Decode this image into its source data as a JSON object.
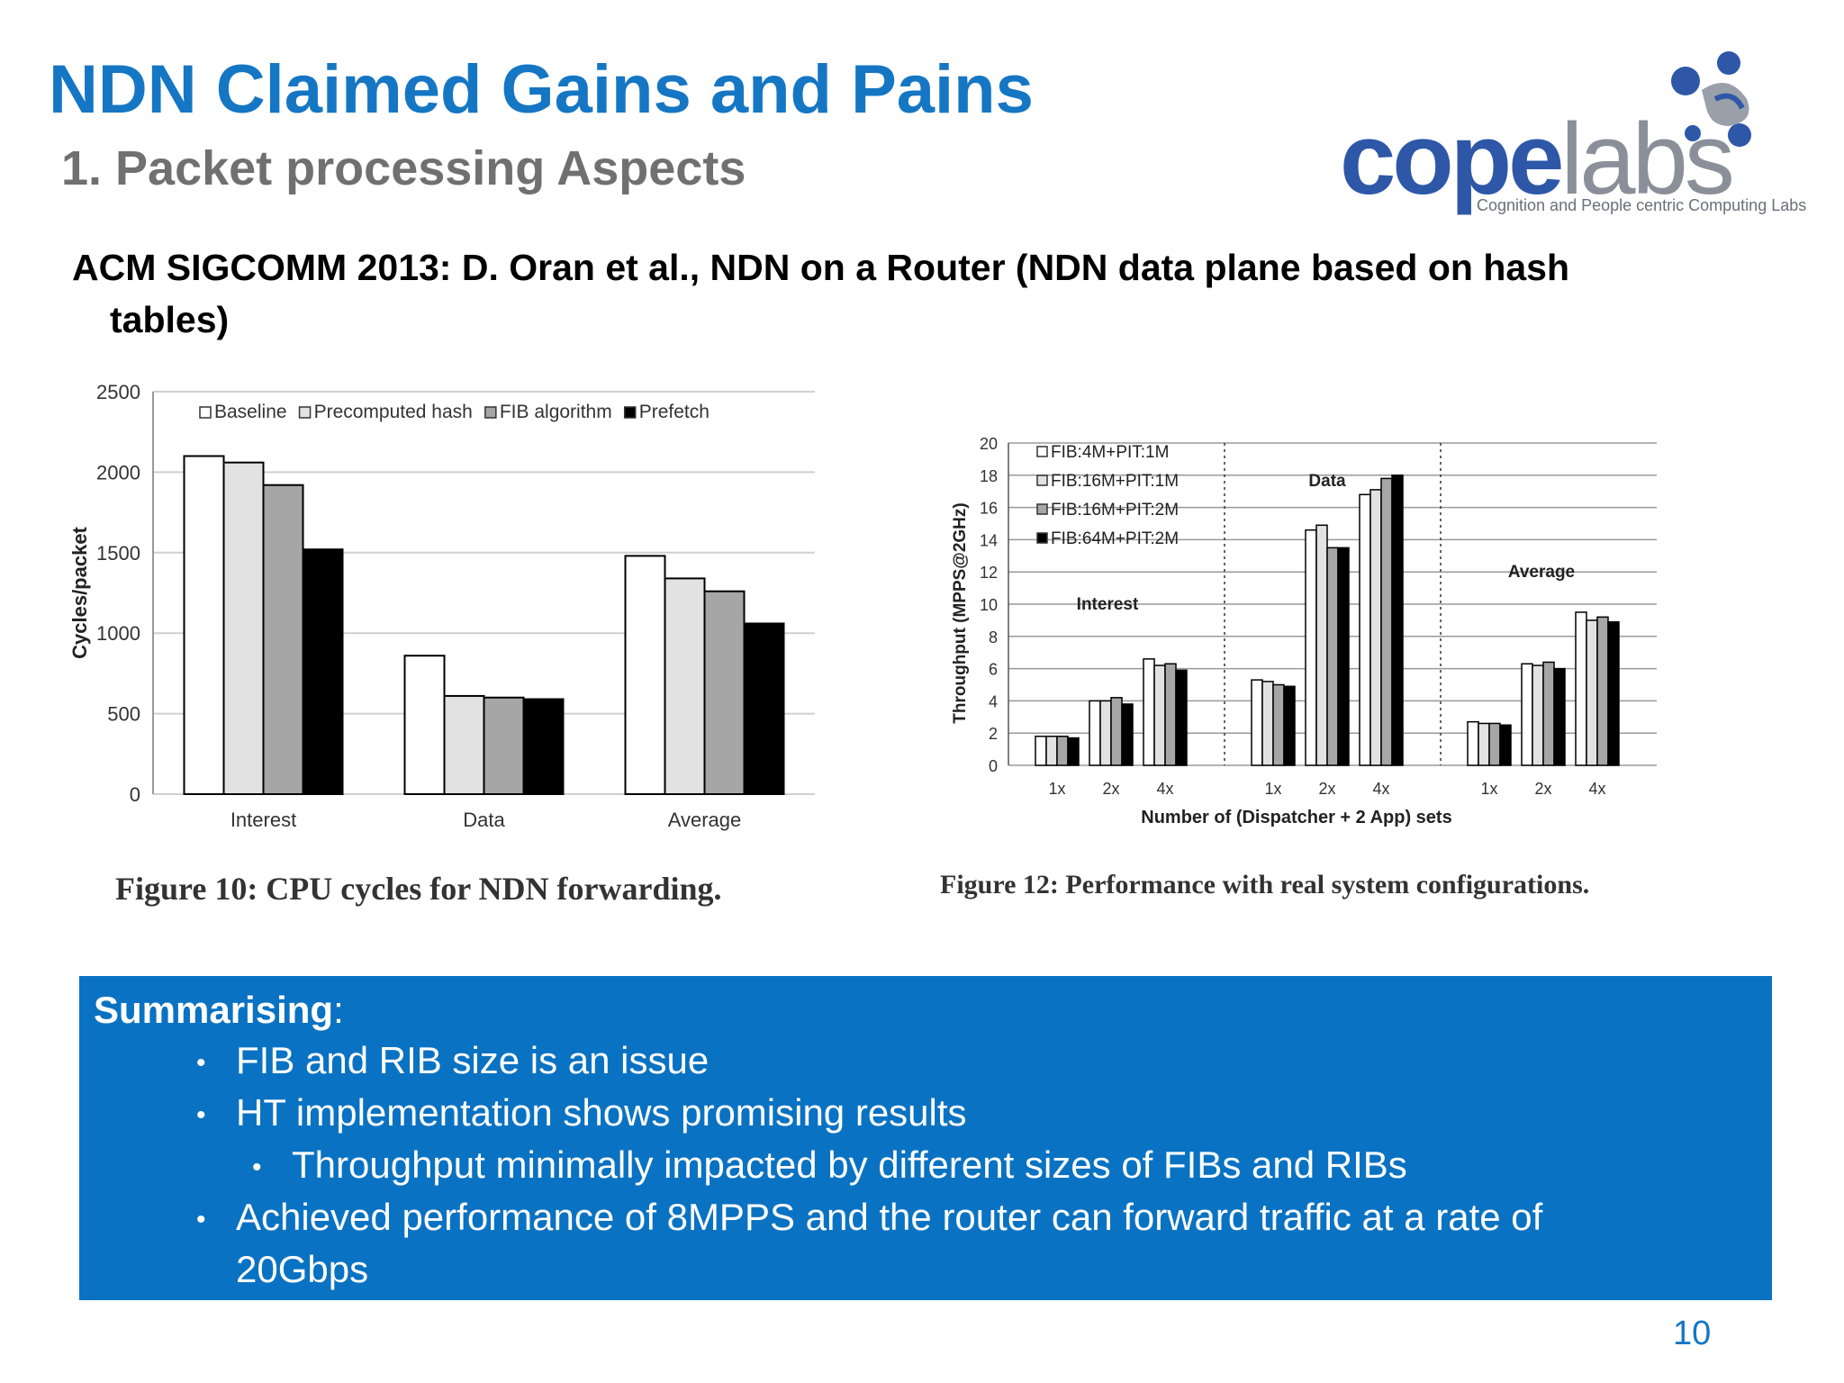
{
  "title": "NDN Claimed Gains and Pains",
  "subtitle": "1. Packet processing Aspects",
  "citation": {
    "line1": "ACM SIGCOMM 2013: D. Oran et al., NDN on a Router (NDN data plane based on hash",
    "line2": "tables)"
  },
  "logo": {
    "cope": "cope",
    "labs": "labs",
    "tagline": "Cognition and People centric Computing Labs"
  },
  "figure10_caption": "Figure 10: CPU cycles for NDN forwarding.",
  "figure12_caption": "Figure 12: Performance with real system configurations.",
  "summary": {
    "heading": "Summarising",
    "heading_suffix": ":",
    "bullets": [
      "FIB and RIB size is an issue",
      "HT implementation shows promising results",
      "Throughput minimally impacted by different sizes of FIBs and RIBs",
      "Achieved performance of 8MPPS and the router can forward traffic at a rate of",
      "20Gbps"
    ],
    "bullet_symbol": "•"
  },
  "page_number": "10",
  "colors": {
    "title": "#1576c4",
    "summary_bg": "#0a72c2"
  },
  "chart_data": [
    {
      "type": "bar",
      "categories": [
        "Interest",
        "Data",
        "Average"
      ],
      "series": [
        {
          "name": "Baseline",
          "color": "#ffffff",
          "values": [
            2100,
            860,
            1480
          ]
        },
        {
          "name": "Precomputed hash",
          "color": "#e2e2e2",
          "values": [
            2060,
            610,
            1340
          ]
        },
        {
          "name": "FIB algorithm",
          "color": "#a6a6a6",
          "values": [
            1920,
            600,
            1260
          ]
        },
        {
          "name": "Prefetch",
          "color": "#000000",
          "values": [
            1520,
            590,
            1060
          ]
        }
      ],
      "ylabel": "Cycles/packet",
      "ylim": [
        0,
        2500
      ],
      "yticks": [
        0,
        500,
        1000,
        1500,
        2000,
        2500
      ],
      "grid": true,
      "legend": "top"
    },
    {
      "type": "bar",
      "groups": [
        "Interest",
        "Data",
        "Average"
      ],
      "categories": [
        "1x",
        "2x",
        "4x"
      ],
      "series": [
        {
          "name": "FIB:4M+PIT:1M",
          "color": "#ffffff",
          "values": [
            [
              1.8,
              4.0,
              6.6
            ],
            [
              5.3,
              14.6,
              16.8
            ],
            [
              2.7,
              6.3,
              9.5
            ]
          ]
        },
        {
          "name": "FIB:16M+PIT:1M",
          "color": "#e2e2e2",
          "values": [
            [
              1.8,
              4.0,
              6.2
            ],
            [
              5.2,
              14.9,
              17.1
            ],
            [
              2.6,
              6.2,
              9.0
            ]
          ]
        },
        {
          "name": "FIB:16M+PIT:2M",
          "color": "#a6a6a6",
          "values": [
            [
              1.8,
              4.2,
              6.3
            ],
            [
              5.0,
              13.5,
              17.8
            ],
            [
              2.6,
              6.4,
              9.2
            ]
          ]
        },
        {
          "name": "FIB:64M+PIT:2M",
          "color": "#000000",
          "values": [
            [
              1.7,
              3.8,
              5.9
            ],
            [
              4.9,
              13.5,
              18.0
            ],
            [
              2.5,
              6.0,
              8.9
            ]
          ]
        }
      ],
      "xlabel": "Number of (Dispatcher + 2 App) sets",
      "ylabel": "Throughput (MPPS@2GHz)",
      "ylim": [
        0,
        20
      ],
      "yticks": [
        0,
        2,
        4,
        6,
        8,
        10,
        12,
        14,
        16,
        18,
        20
      ],
      "grid": true,
      "legend": "top-left"
    }
  ]
}
